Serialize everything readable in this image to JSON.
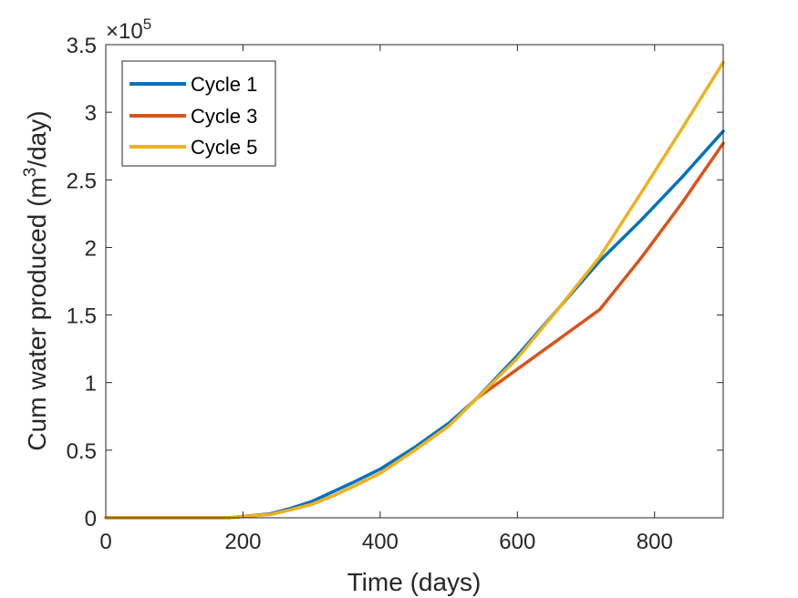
{
  "chart_data": {
    "type": "line",
    "xlabel": "Time (days)",
    "ylabel": {
      "main": "Cum water produced (m",
      "sup": "3",
      "tail": "/day)"
    },
    "y_multiplier": {
      "base": "×10",
      "exponent": "5"
    },
    "xlim": [
      0,
      900
    ],
    "ylim": [
      0,
      3.5
    ],
    "x_ticks": [
      0,
      200,
      400,
      600,
      800
    ],
    "y_ticks": [
      0,
      0.5,
      1,
      1.5,
      2,
      2.5,
      3,
      3.5
    ],
    "x_tick_labels": [
      "0",
      "200",
      "400",
      "600",
      "800"
    ],
    "y_tick_labels": [
      "0",
      "0.5",
      "1",
      "1.5",
      "2",
      "2.5",
      "3",
      "3.5"
    ],
    "grid": false,
    "legend_position": "top-left",
    "series": [
      {
        "name": "Cycle 1",
        "color": "#0072BD",
        "x": [
          0,
          180,
          200,
          240,
          270,
          300,
          330,
          360,
          400,
          450,
          500,
          540,
          600,
          660,
          720,
          780,
          840,
          900
        ],
        "y": [
          0,
          0,
          0.01,
          0.03,
          0.07,
          0.12,
          0.19,
          0.26,
          0.36,
          0.52,
          0.7,
          0.88,
          1.2,
          1.55,
          1.9,
          2.2,
          2.52,
          2.86
        ]
      },
      {
        "name": "Cycle 3",
        "color": "#D95319",
        "x": [
          0,
          180,
          200,
          240,
          270,
          300,
          330,
          360,
          400,
          450,
          500,
          540,
          600,
          660,
          720,
          780,
          840,
          900
        ],
        "y": [
          0,
          0,
          0.01,
          0.025,
          0.06,
          0.1,
          0.16,
          0.23,
          0.33,
          0.5,
          0.68,
          0.88,
          1.1,
          1.32,
          1.54,
          1.92,
          2.33,
          2.77
        ]
      },
      {
        "name": "Cycle 5",
        "color": "#EDB120",
        "x": [
          0,
          180,
          200,
          240,
          270,
          300,
          330,
          360,
          400,
          450,
          500,
          540,
          600,
          660,
          720,
          780,
          840,
          900
        ],
        "y": [
          0,
          0,
          0.01,
          0.025,
          0.06,
          0.1,
          0.16,
          0.23,
          0.33,
          0.5,
          0.68,
          0.88,
          1.18,
          1.55,
          1.93,
          2.4,
          2.88,
          3.37
        ]
      }
    ]
  }
}
